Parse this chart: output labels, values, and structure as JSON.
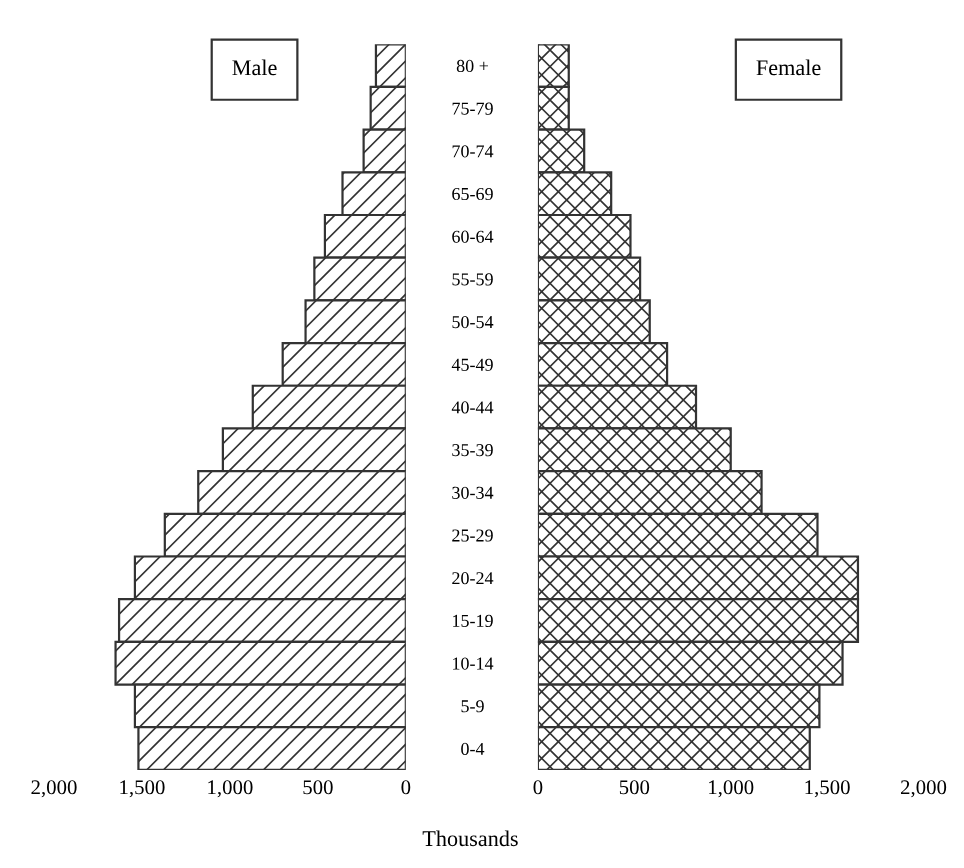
{
  "chart_data": [
    {
      "type": "bar",
      "orientation": "horizontal",
      "title": "Male",
      "xlabel": "Thousands",
      "grid": false,
      "color": "#333333",
      "categories": [
        "80 +",
        "75-79",
        "70-74",
        "65-69",
        "60-64",
        "55-59",
        "50-54",
        "45-49",
        "40-44",
        "35-39",
        "30-34",
        "25-29",
        "20-24",
        "15-19",
        "10-14",
        "5-9",
        "0-4"
      ],
      "values": [
        170,
        200,
        240,
        360,
        460,
        520,
        570,
        700,
        870,
        1040,
        1180,
        1370,
        1540,
        1630,
        1650,
        1540,
        1520
      ],
      "xlim": [
        2000,
        0
      ],
      "xticks": [
        {
          "value": 2000,
          "label": "2,000"
        },
        {
          "value": 1500,
          "label": "1,500"
        },
        {
          "value": 1000,
          "label": "1,000"
        },
        500,
        0
      ]
    },
    {
      "type": "bar",
      "orientation": "horizontal",
      "title": "Female",
      "tick_labels": "x",
      "grid": false,
      "color": "#333333",
      "categories": [
        null,
        null,
        null,
        null,
        null,
        null,
        null,
        null,
        null,
        null,
        null,
        null,
        null,
        null,
        null,
        null,
        null
      ],
      "values": [
        160,
        160,
        240,
        380,
        480,
        530,
        580,
        670,
        820,
        1000,
        1160,
        1450,
        1660,
        1660,
        1580,
        1460,
        1410
      ],
      "xlim": [
        0,
        2000
      ],
      "xticks": [
        0,
        500,
        {
          "value": 1000,
          "label": "1,000"
        },
        {
          "value": 1500,
          "label": "1,500"
        },
        {
          "value": 2000,
          "label": "2,000"
        }
      ]
    }
  ]
}
